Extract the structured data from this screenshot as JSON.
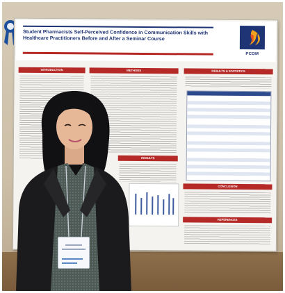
{
  "poster": {
    "title": "Student Pharmacists Self-Perceived Confidence in Communication Skills with Healthcare Practitioners Before and After a Seminar Course",
    "authors": "",
    "logo_text": "PCOM",
    "sections": {
      "introduction": "INTRODUCTION",
      "methods": "METHODS",
      "results": "RESULTS",
      "results_statistics": "RESULTS & STATISTICS",
      "conclusion": "CONCLUSION",
      "references": "REFERENCES"
    }
  },
  "colors": {
    "poster_navy": "#1f3474",
    "poster_red": "#b52a26",
    "wall": "#d6cbb6",
    "jacket": "#1b1b1d"
  }
}
